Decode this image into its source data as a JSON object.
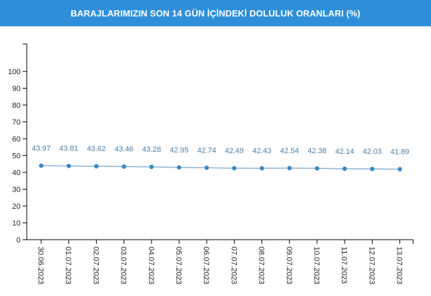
{
  "header": {
    "title": "BARAJLARIMIZIN SON 14 GÜN İÇİNDEKİ DOLULUK ORANLARI (%)"
  },
  "colors": {
    "header_bg": "#2e8fd8",
    "line": "#8ab4d6",
    "point": "#3a88c5",
    "label": "#4a7fa8",
    "axis": "#000000"
  },
  "chart_data": {
    "type": "line",
    "title": "BARAJLARIMIZIN SON 14 GÜN İÇİNDEKİ DOLULUK ORANLARI (%)",
    "xlabel": "",
    "ylabel": "",
    "ylim": [
      0,
      100
    ],
    "yticks": [
      "0",
      "10",
      "20",
      "30",
      "40",
      "50",
      "60",
      "70",
      "80",
      "90",
      "100"
    ],
    "grid": false,
    "categories": [
      "30.06.2023",
      "01.07.2023",
      "02.07.2023",
      "03.07.2023",
      "04.07.2023",
      "05.07.2023",
      "06.07.2023",
      "07.07.2023",
      "08.07.2023",
      "09.07.2023",
      "10.07.2023",
      "11.07.2023",
      "12.07.2023",
      "13.07.2023"
    ],
    "values": [
      43.97,
      43.81,
      43.62,
      43.46,
      43.28,
      42.95,
      42.74,
      42.49,
      42.43,
      42.54,
      42.38,
      42.14,
      42.03,
      41.89
    ],
    "data_labels": [
      "43.97",
      "43.81",
      "43.62",
      "43.46",
      "43.28",
      "42.95",
      "42.74",
      "42.49",
      "42.43",
      "42.54",
      "42.38",
      "42.14",
      "42.03",
      "41.89"
    ]
  }
}
